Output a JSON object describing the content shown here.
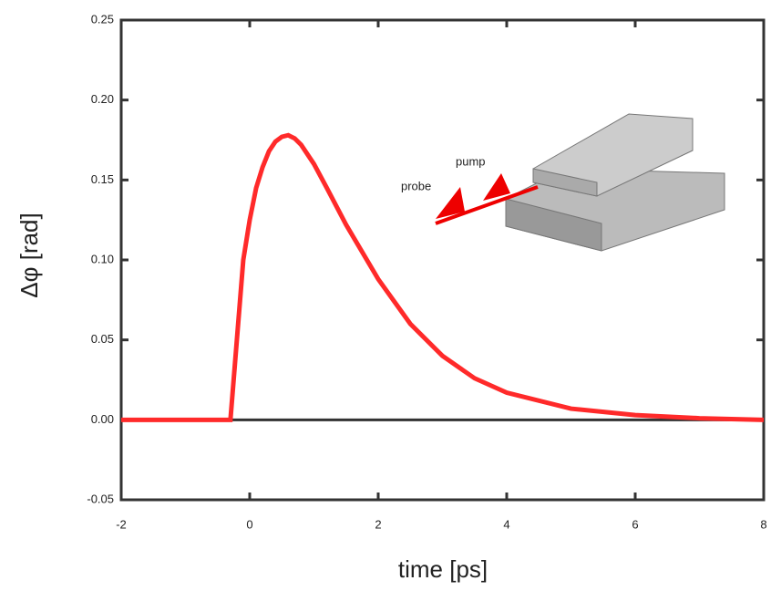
{
  "chart_data": {
    "type": "line",
    "x_label": "time [ps]",
    "y_label": "Δφ [rad]",
    "annotations": [
      "probe",
      "pump"
    ],
    "series": [
      {
        "color": "#ff2a2a",
        "x": [
          -2,
          -0.3,
          -0.2,
          -0.1,
          0,
          0.1,
          0.2,
          0.3,
          0.4,
          0.5,
          0.6,
          0.7,
          0.8,
          1.0,
          1.2,
          1.5,
          2.0,
          2.5,
          3.0,
          3.5,
          4.0,
          5.0,
          6.0,
          7.0,
          8.0
        ],
        "values": [
          0,
          0,
          0.05,
          0.1,
          0.125,
          0.145,
          0.158,
          0.168,
          0.174,
          0.177,
          0.178,
          0.176,
          0.172,
          0.16,
          0.145,
          0.122,
          0.088,
          0.06,
          0.04,
          0.026,
          0.017,
          0.007,
          0.003,
          0.001,
          0
        ]
      }
    ],
    "xlim": [
      -2,
      8
    ],
    "xticks": [
      -2,
      0,
      2,
      4,
      6,
      8
    ],
    "ylim": [
      -0.05,
      0.25
    ],
    "yticks": [
      -0.05,
      {
        "value": 0,
        "label": "0.00"
      },
      0.05,
      {
        "value": 0.1,
        "label": "0.10"
      },
      0.15,
      {
        "value": 0.2,
        "label": "0.20"
      },
      0.25
    ]
  }
}
